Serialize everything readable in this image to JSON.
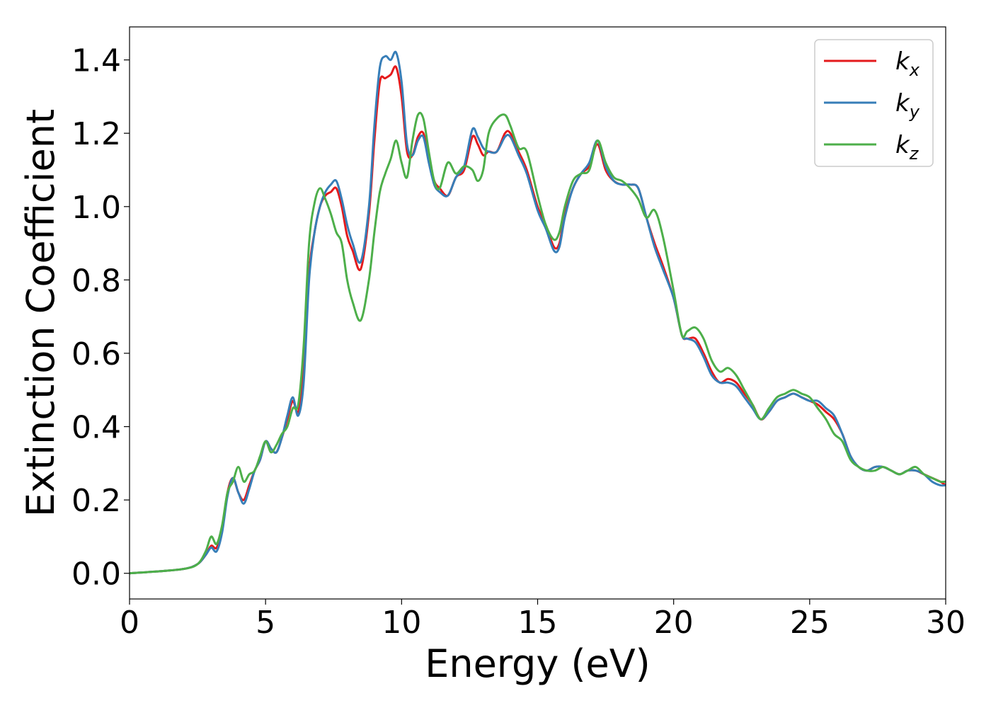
{
  "chart_data": {
    "type": "line",
    "xlabel": "Energy (eV)",
    "ylabel": "Extinction Coefficient",
    "xlim": [
      0,
      30
    ],
    "ylim": [
      -0.07,
      1.49
    ],
    "xticks": [
      0,
      5,
      10,
      15,
      20,
      25,
      30
    ],
    "yticks": [
      "0.0",
      "0.2",
      "0.4",
      "0.6",
      "0.8",
      "1.0",
      "1.2",
      "1.4"
    ],
    "grid": false,
    "legend_position": "top-right",
    "colors": {
      "kx": "#e41a1c",
      "ky": "#377eb8",
      "kz": "#4daf4a"
    },
    "series": [
      {
        "key": "kx",
        "name": "k",
        "subscript": "x",
        "color": "#e41a1c",
        "x": [
          0,
          1,
          2,
          2.5,
          2.8,
          3.0,
          3.2,
          3.4,
          3.6,
          3.8,
          4.0,
          4.2,
          4.4,
          4.6,
          4.8,
          5.0,
          5.2,
          5.4,
          5.6,
          5.8,
          6.0,
          6.2,
          6.4,
          6.6,
          6.8,
          7.0,
          7.2,
          7.4,
          7.6,
          7.8,
          8.0,
          8.2,
          8.5,
          8.8,
          9.0,
          9.2,
          9.4,
          9.6,
          9.8,
          10.0,
          10.2,
          10.4,
          10.6,
          10.8,
          11.0,
          11.2,
          11.4,
          11.7,
          12.0,
          12.3,
          12.6,
          12.8,
          13.0,
          13.2,
          13.5,
          13.8,
          14.0,
          14.3,
          14.6,
          15.0,
          15.3,
          15.6,
          15.8,
          16.0,
          16.3,
          16.6,
          16.9,
          17.2,
          17.5,
          17.8,
          18.1,
          18.4,
          18.7,
          19.0,
          19.3,
          19.6,
          20.0,
          20.3,
          20.5,
          20.8,
          21.1,
          21.4,
          21.7,
          22.0,
          22.3,
          22.6,
          22.9,
          23.2,
          23.5,
          23.8,
          24.1,
          24.4,
          24.7,
          25.0,
          25.3,
          25.6,
          25.9,
          26.2,
          26.5,
          26.8,
          27.1,
          27.4,
          27.7,
          28.0,
          28.3,
          28.6,
          28.9,
          29.2,
          29.5,
          29.8,
          30.0
        ],
        "y": [
          0.0,
          0.005,
          0.012,
          0.025,
          0.05,
          0.075,
          0.07,
          0.12,
          0.22,
          0.26,
          0.22,
          0.2,
          0.24,
          0.28,
          0.31,
          0.36,
          0.34,
          0.33,
          0.37,
          0.42,
          0.47,
          0.44,
          0.55,
          0.82,
          0.93,
          1.0,
          1.03,
          1.04,
          1.05,
          1.0,
          0.92,
          0.88,
          0.83,
          0.98,
          1.18,
          1.34,
          1.35,
          1.36,
          1.38,
          1.3,
          1.15,
          1.14,
          1.19,
          1.2,
          1.13,
          1.07,
          1.05,
          1.03,
          1.08,
          1.1,
          1.19,
          1.17,
          1.14,
          1.15,
          1.15,
          1.2,
          1.2,
          1.15,
          1.1,
          1.0,
          0.95,
          0.89,
          0.9,
          0.98,
          1.05,
          1.09,
          1.11,
          1.17,
          1.1,
          1.07,
          1.06,
          1.06,
          1.05,
          0.97,
          0.9,
          0.84,
          0.75,
          0.65,
          0.64,
          0.64,
          0.6,
          0.55,
          0.52,
          0.53,
          0.52,
          0.49,
          0.46,
          0.42,
          0.44,
          0.47,
          0.48,
          0.49,
          0.48,
          0.47,
          0.46,
          0.44,
          0.42,
          0.38,
          0.32,
          0.29,
          0.28,
          0.29,
          0.29,
          0.28,
          0.27,
          0.28,
          0.28,
          0.27,
          0.26,
          0.25,
          0.24
        ]
      },
      {
        "key": "ky",
        "name": "k",
        "subscript": "y",
        "color": "#377eb8",
        "x": [
          0,
          1,
          2,
          2.5,
          2.8,
          3.0,
          3.2,
          3.4,
          3.6,
          3.8,
          4.0,
          4.2,
          4.4,
          4.6,
          4.8,
          5.0,
          5.2,
          5.4,
          5.6,
          5.8,
          6.0,
          6.2,
          6.4,
          6.6,
          6.8,
          7.0,
          7.2,
          7.4,
          7.6,
          7.8,
          8.0,
          8.2,
          8.5,
          8.8,
          9.0,
          9.2,
          9.4,
          9.6,
          9.8,
          10.0,
          10.2,
          10.4,
          10.6,
          10.8,
          11.0,
          11.2,
          11.4,
          11.7,
          12.0,
          12.3,
          12.6,
          12.8,
          13.0,
          13.2,
          13.5,
          13.8,
          14.0,
          14.3,
          14.6,
          15.0,
          15.3,
          15.6,
          15.8,
          16.0,
          16.3,
          16.6,
          16.9,
          17.2,
          17.5,
          17.8,
          18.1,
          18.4,
          18.7,
          19.0,
          19.3,
          19.6,
          20.0,
          20.3,
          20.5,
          20.8,
          21.1,
          21.4,
          21.7,
          22.0,
          22.3,
          22.6,
          22.9,
          23.2,
          23.5,
          23.8,
          24.1,
          24.4,
          24.7,
          25.0,
          25.3,
          25.6,
          25.9,
          26.2,
          26.5,
          26.8,
          27.1,
          27.4,
          27.7,
          28.0,
          28.3,
          28.6,
          28.9,
          29.2,
          29.5,
          29.8,
          30.0
        ],
        "y": [
          0.0,
          0.005,
          0.012,
          0.025,
          0.05,
          0.07,
          0.06,
          0.11,
          0.21,
          0.26,
          0.22,
          0.19,
          0.23,
          0.28,
          0.31,
          0.36,
          0.34,
          0.33,
          0.37,
          0.43,
          0.48,
          0.43,
          0.52,
          0.8,
          0.93,
          1.0,
          1.04,
          1.06,
          1.07,
          1.02,
          0.95,
          0.9,
          0.85,
          1.0,
          1.22,
          1.38,
          1.41,
          1.4,
          1.42,
          1.34,
          1.17,
          1.14,
          1.18,
          1.19,
          1.12,
          1.06,
          1.04,
          1.03,
          1.08,
          1.11,
          1.21,
          1.19,
          1.16,
          1.15,
          1.15,
          1.19,
          1.19,
          1.14,
          1.09,
          0.99,
          0.94,
          0.88,
          0.89,
          0.97,
          1.05,
          1.09,
          1.12,
          1.18,
          1.11,
          1.07,
          1.06,
          1.06,
          1.05,
          0.97,
          0.89,
          0.83,
          0.75,
          0.65,
          0.64,
          0.63,
          0.59,
          0.54,
          0.52,
          0.52,
          0.51,
          0.48,
          0.45,
          0.42,
          0.44,
          0.47,
          0.48,
          0.49,
          0.48,
          0.47,
          0.47,
          0.45,
          0.43,
          0.38,
          0.32,
          0.29,
          0.28,
          0.29,
          0.29,
          0.28,
          0.27,
          0.28,
          0.28,
          0.27,
          0.25,
          0.24,
          0.24
        ]
      },
      {
        "key": "kz",
        "name": "k",
        "subscript": "z",
        "color": "#4daf4a",
        "x": [
          0,
          1,
          2,
          2.5,
          2.8,
          3.0,
          3.2,
          3.4,
          3.6,
          3.8,
          4.0,
          4.2,
          4.4,
          4.6,
          4.8,
          5.0,
          5.2,
          5.4,
          5.6,
          5.8,
          6.0,
          6.2,
          6.4,
          6.6,
          6.8,
          7.0,
          7.2,
          7.4,
          7.6,
          7.8,
          8.0,
          8.2,
          8.5,
          8.8,
          9.0,
          9.2,
          9.4,
          9.6,
          9.8,
          10.0,
          10.2,
          10.4,
          10.6,
          10.8,
          11.0,
          11.2,
          11.4,
          11.7,
          12.0,
          12.3,
          12.6,
          12.8,
          13.0,
          13.2,
          13.5,
          13.8,
          14.0,
          14.3,
          14.6,
          15.0,
          15.3,
          15.6,
          15.8,
          16.0,
          16.3,
          16.6,
          16.9,
          17.2,
          17.5,
          17.8,
          18.1,
          18.4,
          18.7,
          19.0,
          19.3,
          19.6,
          20.0,
          20.3,
          20.5,
          20.8,
          21.1,
          21.4,
          21.7,
          22.0,
          22.3,
          22.6,
          22.9,
          23.2,
          23.5,
          23.8,
          24.1,
          24.4,
          24.7,
          25.0,
          25.3,
          25.6,
          25.9,
          26.2,
          26.5,
          26.8,
          27.1,
          27.4,
          27.7,
          28.0,
          28.3,
          28.6,
          28.9,
          29.2,
          29.5,
          29.8,
          30.0
        ],
        "y": [
          0.0,
          0.005,
          0.012,
          0.025,
          0.06,
          0.1,
          0.08,
          0.13,
          0.22,
          0.25,
          0.29,
          0.25,
          0.27,
          0.28,
          0.32,
          0.36,
          0.33,
          0.35,
          0.38,
          0.4,
          0.45,
          0.46,
          0.62,
          0.9,
          1.01,
          1.05,
          1.02,
          0.98,
          0.93,
          0.9,
          0.8,
          0.74,
          0.69,
          0.8,
          0.93,
          1.04,
          1.09,
          1.13,
          1.18,
          1.12,
          1.08,
          1.18,
          1.25,
          1.24,
          1.15,
          1.07,
          1.05,
          1.12,
          1.09,
          1.11,
          1.1,
          1.07,
          1.1,
          1.2,
          1.24,
          1.25,
          1.22,
          1.16,
          1.15,
          1.03,
          0.95,
          0.91,
          0.93,
          1.0,
          1.07,
          1.09,
          1.1,
          1.18,
          1.12,
          1.08,
          1.07,
          1.05,
          1.02,
          0.97,
          0.99,
          0.92,
          0.77,
          0.65,
          0.66,
          0.67,
          0.64,
          0.58,
          0.55,
          0.56,
          0.54,
          0.5,
          0.46,
          0.42,
          0.45,
          0.48,
          0.49,
          0.5,
          0.49,
          0.48,
          0.45,
          0.42,
          0.38,
          0.36,
          0.31,
          0.29,
          0.28,
          0.28,
          0.29,
          0.28,
          0.27,
          0.28,
          0.29,
          0.27,
          0.26,
          0.25,
          0.25
        ]
      }
    ]
  }
}
